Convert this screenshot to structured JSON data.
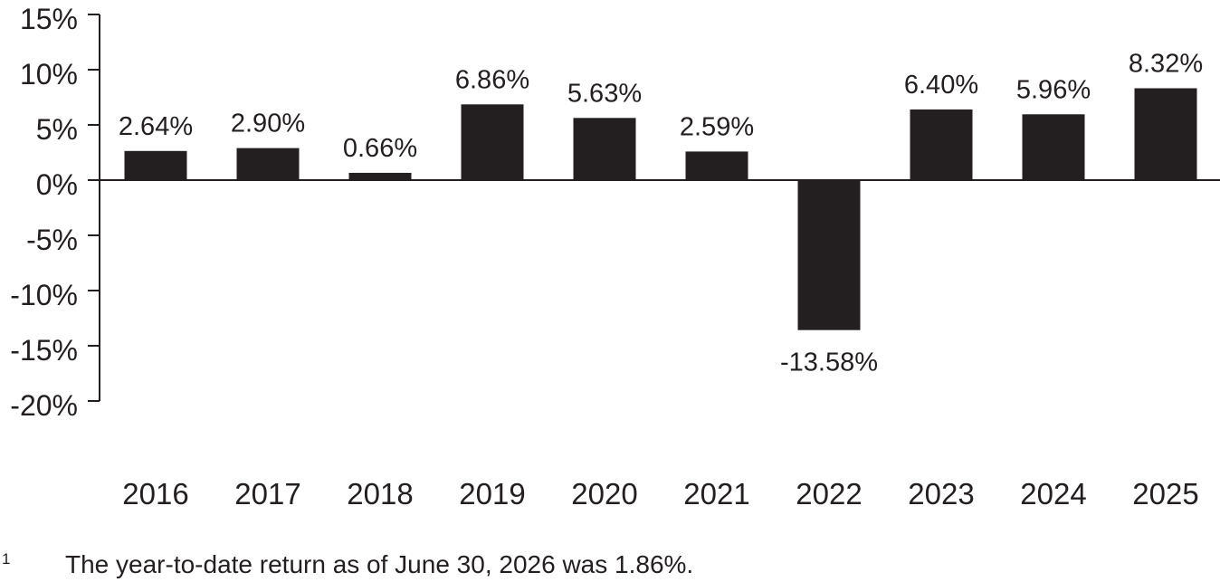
{
  "chart_data": {
    "type": "bar",
    "categories": [
      "2016",
      "2017",
      "2018",
      "2019",
      "2020",
      "2021",
      "2022",
      "2023",
      "2024",
      "2025"
    ],
    "values": [
      2.64,
      2.9,
      0.66,
      6.86,
      5.63,
      2.59,
      -13.58,
      6.4,
      5.96,
      8.32
    ],
    "data_labels": [
      "2.64%",
      "2.90%",
      "0.66%",
      "6.86%",
      "5.63%",
      "2.59%",
      "-13.58%",
      "6.40%",
      "5.96%",
      "8.32%"
    ],
    "ylim": [
      -20,
      15
    ],
    "yticks": [
      15,
      10,
      5,
      0,
      -5,
      -10,
      -15,
      -20
    ],
    "ytick_labels": [
      "15%",
      "10%",
      "5%",
      "0%",
      "-5%",
      "-10%",
      "-15%",
      "-20%"
    ],
    "grid": false,
    "legend": "none",
    "bar_color": "#231f20"
  },
  "footnote": {
    "marker": "1",
    "text": "The year-to-date return as of June 30, 2026 was 1.86%."
  }
}
